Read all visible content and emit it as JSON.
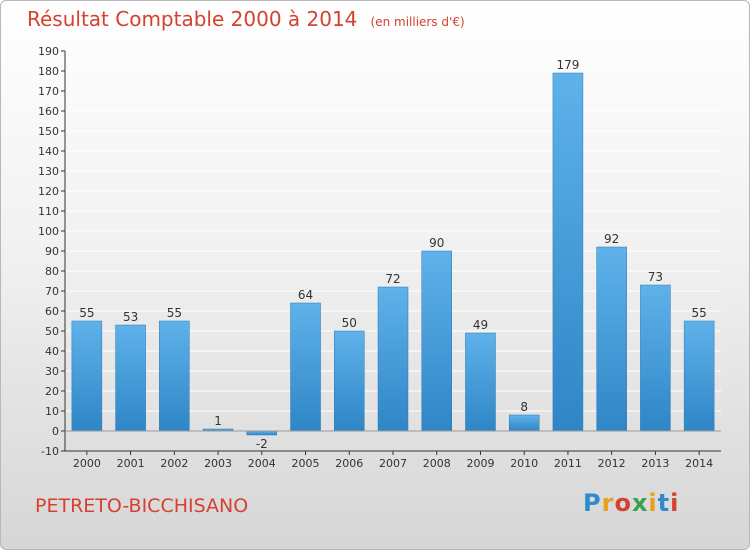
{
  "header": {
    "title": "Résultat Comptable 2000 à 2014",
    "subtitle": "(en milliers d'€)"
  },
  "footer": {
    "commune": "PETRETO-BICCHISANO",
    "brand": "Proxiti"
  },
  "colors": {
    "title": "#d5412f",
    "bar_light": "#5fb2ea",
    "bar_dark": "#2f86c6",
    "axis": "#333333",
    "grid": "#ffffff"
  },
  "chart_data": {
    "type": "bar",
    "title": "Résultat Comptable 2000 à 2014",
    "subtitle": "(en milliers d'€)",
    "xlabel": "",
    "ylabel": "",
    "categories": [
      "2000",
      "2001",
      "2002",
      "2003",
      "2004",
      "2005",
      "2006",
      "2007",
      "2008",
      "2009",
      "2010",
      "2011",
      "2012",
      "2013",
      "2014"
    ],
    "values": [
      55,
      53,
      55,
      1,
      -2,
      64,
      50,
      72,
      90,
      49,
      8,
      179,
      92,
      73,
      55
    ],
    "ylim": [
      -10,
      190
    ],
    "yticks": [
      -10,
      0,
      10,
      20,
      30,
      40,
      50,
      60,
      70,
      80,
      90,
      100,
      110,
      120,
      130,
      140,
      150,
      160,
      170,
      180,
      190
    ],
    "grid": true,
    "legend": "none"
  }
}
